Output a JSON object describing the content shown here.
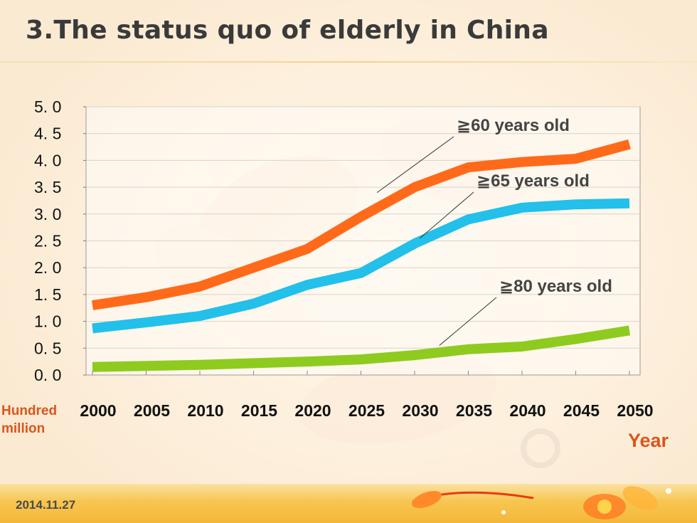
{
  "slide": {
    "title": "3.The status quo of elderly in China",
    "date": "2014.11.27"
  },
  "colors": {
    "title": "#3a3a3a",
    "accent_orange": "#ff6a1a",
    "accent_blue": "#22c0ea",
    "accent_green": "#8ecb1e",
    "unit_text": "#d8561e",
    "footer": "#f6c04a"
  },
  "chart_data": {
    "type": "line",
    "title": "",
    "xlabel": "Year",
    "ylabel": "Hundred million",
    "x": [
      2000,
      2005,
      2010,
      2015,
      2020,
      2025,
      2030,
      2035,
      2040,
      2045,
      2050
    ],
    "x_tick_labels": [
      "2000",
      "2005",
      "2010",
      "2015",
      "2020",
      "2025",
      "2030",
      "2035",
      "2040",
      "2045",
      "2050"
    ],
    "y_tick_labels": [
      "0. 0",
      "0. 5",
      "1. 0",
      "1. 5",
      "2. 0",
      "2. 5",
      "3. 0",
      "3. 5",
      "4. 0",
      "4. 5",
      "5. 0"
    ],
    "y_ticks": [
      0,
      0.5,
      1.0,
      1.5,
      2.0,
      2.5,
      3.0,
      3.5,
      4.0,
      4.5,
      5.0
    ],
    "xlim": [
      2000,
      2050
    ],
    "ylim": [
      0,
      5
    ],
    "grid": "horizontal",
    "legend": "annotations",
    "series": [
      {
        "name": "≧60 years old",
        "color": "#ff6a1a",
        "values": [
          1.3,
          1.45,
          1.65,
          2.0,
          2.35,
          2.95,
          3.5,
          3.87,
          3.97,
          4.03,
          4.3
        ]
      },
      {
        "name": "≧65 years old",
        "color": "#22c0ea",
        "values": [
          0.87,
          0.98,
          1.1,
          1.33,
          1.68,
          1.9,
          2.45,
          2.9,
          3.12,
          3.18,
          3.2
        ]
      },
      {
        "name": "≧80 years old",
        "color": "#8ecb1e",
        "values": [
          0.15,
          0.17,
          0.19,
          0.22,
          0.25,
          0.29,
          0.37,
          0.48,
          0.53,
          0.67,
          0.83
        ]
      }
    ],
    "annotations": [
      {
        "text": "≧60 years old",
        "series": 0,
        "point_x": 2026.5,
        "point_y": 3.4
      },
      {
        "text": "≧65 years old",
        "series": 1,
        "point_x": 2030.5,
        "point_y": 2.55
      },
      {
        "text": "≧80 years old",
        "series": 2,
        "point_x": 2032.3,
        "point_y": 0.55
      }
    ]
  }
}
